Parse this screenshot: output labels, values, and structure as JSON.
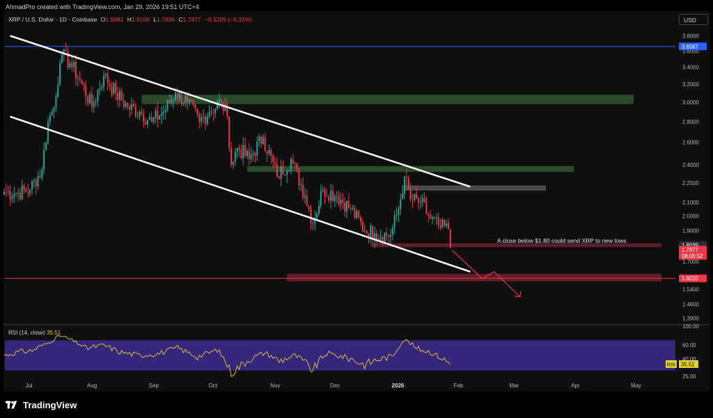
{
  "header": {
    "text": "AhmadPro created with TradingView.com, Jan 29, 2026 19:51 UTC+4"
  },
  "legend": {
    "symbol": "XRP / U.S. Dollar · 1D · Coinbase",
    "open_label": "O",
    "open": "1.9082",
    "high_label": "H",
    "high": "1.9106",
    "low_label": "L",
    "low": "1.7836",
    "close_label": "C",
    "close": "1.7877",
    "change": "−0.1205 (−6.31%)"
  },
  "currency_button": {
    "label": "USD"
  },
  "annotation": {
    "text": "A close below $1.80 could send XRP to new lows"
  },
  "price_axis": {
    "ticks": [
      "3.8000",
      "3.6000",
      "3.4000",
      "3.2000",
      "3.0000",
      "2.8000",
      "2.6000",
      "2.4000",
      "2.2500",
      "2.1000",
      "2.0000",
      "1.9000",
      "1.7000",
      "1.5400",
      "1.4600",
      "1.3900"
    ],
    "tick_values": [
      3.8,
      3.6,
      3.4,
      3.2,
      3.0,
      2.8,
      2.6,
      2.4,
      2.25,
      2.1,
      2.0,
      1.9,
      1.7,
      1.54,
      1.46,
      1.39
    ],
    "labels": [
      {
        "text": "3.6587",
        "value": 3.6587,
        "color": "#2962ff"
      },
      {
        "text": "1.8039",
        "value": 1.8039,
        "color": "#2a2e39"
      },
      {
        "text": "1.7877",
        "value": 1.7877,
        "color": "#f23645"
      },
      {
        "text": "08:08:52",
        "value": 1.7877,
        "color": "#f23645"
      },
      {
        "text": "1.6020",
        "value": 1.602,
        "color": "#f23645"
      }
    ]
  },
  "time_axis": {
    "labels": [
      "Jul",
      "Aug",
      "Sep",
      "Oct",
      "Nov",
      "Dec",
      "2026",
      "Feb",
      "Mar",
      "Apr",
      "May"
    ]
  },
  "rsi": {
    "label": "RSI (14, close)",
    "value": "35.51",
    "badge_label": "RSI",
    "ticks": [
      "100.00",
      "60.00",
      "40.00",
      "25.00"
    ],
    "tick_values": [
      100,
      60,
      40,
      25
    ],
    "band_upper": 70,
    "band_lower": 30,
    "color": "#e6d235"
  },
  "footer": {
    "brand": "TradingView"
  },
  "colors": {
    "up": "#26a69a",
    "down": "#f23645",
    "channel": "#ffffff",
    "resistance_zone": "#2f5a2f",
    "support_zone": "#7a2430",
    "gray_zone": "#555555",
    "ath_line": "#2962ff",
    "rsi_band": "#3b2a8a"
  },
  "chart_data": {
    "type": "candlestick",
    "title": "XRP / U.S. Dollar · 1D · Coinbase",
    "ylim": [
      1.37,
      3.9
    ],
    "scale": "log",
    "grid": false,
    "x_start_date": "2025-06-19",
    "x_end_date": "2026-05-15",
    "ohlc_anchors": [
      {
        "date": "2025-06-19",
        "close": 2.18
      },
      {
        "date": "2025-06-25",
        "close": 2.17
      },
      {
        "date": "2025-07-02",
        "close": 2.2
      },
      {
        "date": "2025-07-08",
        "close": 2.36
      },
      {
        "date": "2025-07-11",
        "close": 2.8
      },
      {
        "date": "2025-07-14",
        "close": 2.95
      },
      {
        "date": "2025-07-17",
        "close": 3.45
      },
      {
        "date": "2025-07-18",
        "close": 3.55
      },
      {
        "date": "2025-07-22",
        "close": 3.45
      },
      {
        "date": "2025-07-27",
        "close": 3.25
      },
      {
        "date": "2025-08-02",
        "close": 2.95
      },
      {
        "date": "2025-08-08",
        "close": 3.3
      },
      {
        "date": "2025-08-14",
        "close": 3.1
      },
      {
        "date": "2025-08-20",
        "close": 2.95
      },
      {
        "date": "2025-08-26",
        "close": 2.9
      },
      {
        "date": "2025-09-01",
        "close": 2.8
      },
      {
        "date": "2025-09-07",
        "close": 2.9
      },
      {
        "date": "2025-09-13",
        "close": 3.1
      },
      {
        "date": "2025-09-19",
        "close": 3.0
      },
      {
        "date": "2025-09-25",
        "close": 2.8
      },
      {
        "date": "2025-09-30",
        "close": 2.9
      },
      {
        "date": "2025-10-06",
        "close": 3.0
      },
      {
        "date": "2025-10-09",
        "close": 2.85
      },
      {
        "date": "2025-10-11",
        "close": 2.4
      },
      {
        "date": "2025-10-14",
        "close": 2.55
      },
      {
        "date": "2025-10-20",
        "close": 2.45
      },
      {
        "date": "2025-10-27",
        "close": 2.65
      },
      {
        "date": "2025-11-03",
        "close": 2.3
      },
      {
        "date": "2025-11-10",
        "close": 2.45
      },
      {
        "date": "2025-11-17",
        "close": 2.15
      },
      {
        "date": "2025-11-21",
        "close": 1.95
      },
      {
        "date": "2025-11-26",
        "close": 2.2
      },
      {
        "date": "2025-12-03",
        "close": 2.15
      },
      {
        "date": "2025-12-10",
        "close": 2.05
      },
      {
        "date": "2025-12-17",
        "close": 1.9
      },
      {
        "date": "2025-12-22",
        "close": 1.88
      },
      {
        "date": "2025-12-30",
        "close": 1.87
      },
      {
        "date": "2026-01-03",
        "close": 2.05
      },
      {
        "date": "2026-01-06",
        "close": 2.3
      },
      {
        "date": "2026-01-09",
        "close": 2.12
      },
      {
        "date": "2026-01-14",
        "close": 2.1
      },
      {
        "date": "2026-01-19",
        "close": 1.98
      },
      {
        "date": "2026-01-24",
        "close": 1.92
      },
      {
        "date": "2026-01-28",
        "close": 1.9082
      },
      {
        "date": "2026-01-29",
        "open": 1.9082,
        "high": 1.9106,
        "low": 1.7836,
        "close": 1.7877
      }
    ],
    "channel_upper": [
      {
        "date": "2025-06-22",
        "y": 3.8
      },
      {
        "date": "2026-02-08",
        "y": 2.22
      }
    ],
    "channel_lower": [
      {
        "date": "2025-06-22",
        "y": 2.85
      },
      {
        "date": "2026-02-08",
        "y": 1.64
      }
    ],
    "zones": [
      {
        "kind": "resistance",
        "from": "2025-08-27",
        "to": "2026-05-01",
        "y_top": 3.08,
        "y_bottom": 2.98
      },
      {
        "kind": "resistance",
        "from": "2025-10-19",
        "to": "2026-04-01",
        "y_top": 2.39,
        "y_bottom": 2.34
      },
      {
        "kind": "gray",
        "from": "2026-01-06",
        "to": "2026-03-18",
        "y_top": 2.23,
        "y_bottom": 2.19
      },
      {
        "kind": "support",
        "from": "2025-12-20",
        "to": "2026-05-15",
        "y_top": 1.815,
        "y_bottom": 1.79
      },
      {
        "kind": "support",
        "from": "2025-11-08",
        "to": "2026-05-15",
        "y_top": 1.628,
        "y_bottom": 1.585
      }
    ],
    "horizontal_lines": [
      {
        "name": "all-time-high",
        "y": 3.6587
      },
      {
        "name": "support",
        "y": 1.602
      }
    ],
    "projection_path": [
      {
        "date": "2026-01-30",
        "y": 1.77
      },
      {
        "date": "2026-02-14",
        "y": 1.6
      },
      {
        "date": "2026-02-20",
        "y": 1.64
      },
      {
        "date": "2026-03-05",
        "y": 1.5
      }
    ],
    "rsi_series_anchors": [
      {
        "date": "2025-06-19",
        "v": 45
      },
      {
        "date": "2025-06-26",
        "v": 50
      },
      {
        "date": "2025-07-03",
        "v": 52
      },
      {
        "date": "2025-07-10",
        "v": 62
      },
      {
        "date": "2025-07-17",
        "v": 80
      },
      {
        "date": "2025-07-22",
        "v": 72
      },
      {
        "date": "2025-07-30",
        "v": 55
      },
      {
        "date": "2025-08-08",
        "v": 60
      },
      {
        "date": "2025-08-16",
        "v": 50
      },
      {
        "date": "2025-08-26",
        "v": 45
      },
      {
        "date": "2025-09-05",
        "v": 48
      },
      {
        "date": "2025-09-14",
        "v": 56
      },
      {
        "date": "2025-09-24",
        "v": 43
      },
      {
        "date": "2025-10-04",
        "v": 53
      },
      {
        "date": "2025-10-11",
        "v": 28
      },
      {
        "date": "2025-10-20",
        "v": 40
      },
      {
        "date": "2025-10-28",
        "v": 49
      },
      {
        "date": "2025-11-04",
        "v": 38
      },
      {
        "date": "2025-11-12",
        "v": 45
      },
      {
        "date": "2025-11-21",
        "v": 30
      },
      {
        "date": "2025-11-28",
        "v": 48
      },
      {
        "date": "2025-12-08",
        "v": 42
      },
      {
        "date": "2025-12-17",
        "v": 35
      },
      {
        "date": "2025-12-24",
        "v": 40
      },
      {
        "date": "2025-12-31",
        "v": 44
      },
      {
        "date": "2026-01-06",
        "v": 72
      },
      {
        "date": "2026-01-12",
        "v": 55
      },
      {
        "date": "2026-01-19",
        "v": 50
      },
      {
        "date": "2026-01-24",
        "v": 42
      },
      {
        "date": "2026-01-29",
        "v": 35.51
      }
    ]
  }
}
